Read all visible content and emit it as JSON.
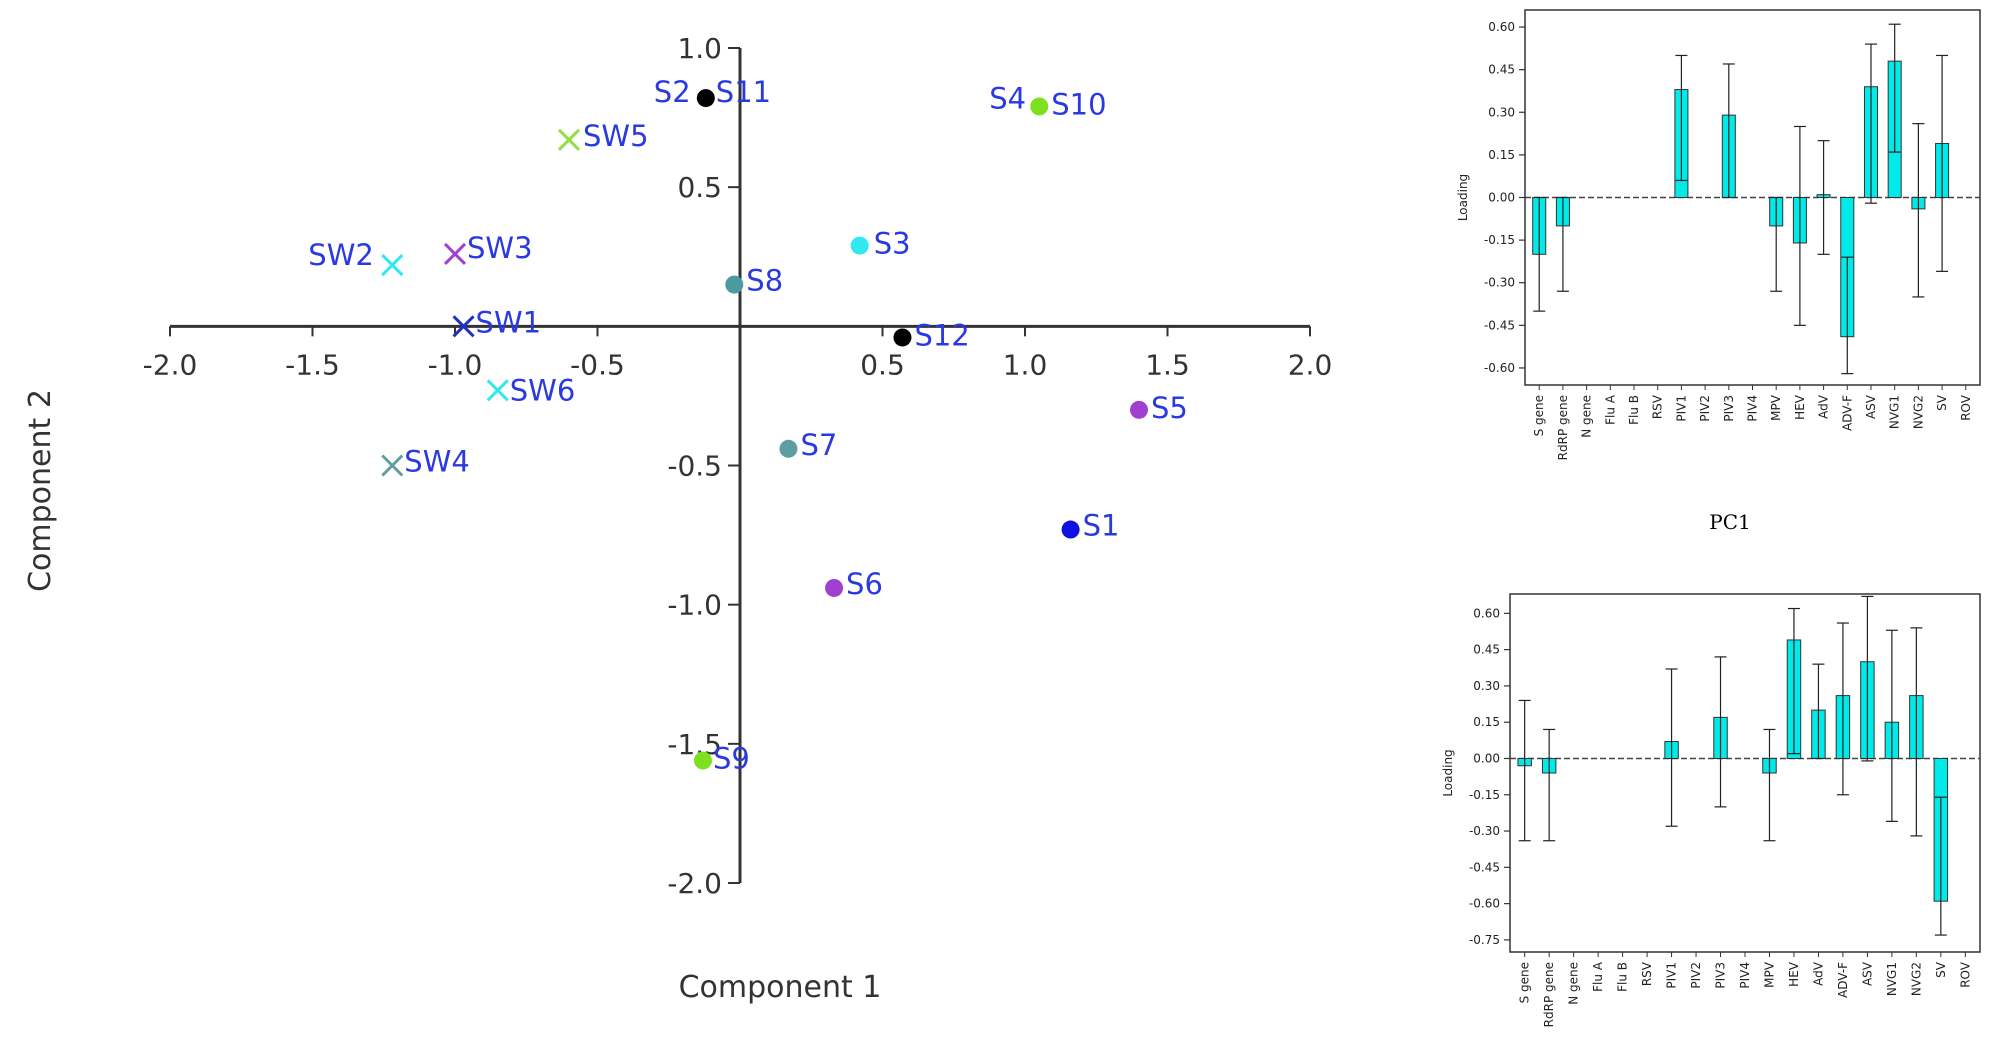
{
  "chart_data": [
    {
      "type": "scatter",
      "title": "",
      "xlabel": "Component 1",
      "ylabel": "Component 2",
      "xlim": [
        -2.0,
        2.0
      ],
      "ylim": [
        -2.0,
        1.0
      ],
      "x_ticks": [
        "-2.0",
        "-1.5",
        "-1.0",
        "-0.5",
        "0.5",
        "1.0",
        "1.5",
        "2.0"
      ],
      "y_ticks": [
        "1.0",
        "0.5",
        "-0.5",
        "-1.0",
        "-1.5",
        "-2.0"
      ],
      "grid": false,
      "points": [
        {
          "label": "S2",
          "x": -0.12,
          "y": 0.82,
          "marker": "dot",
          "color": "#000000"
        },
        {
          "label": "S11",
          "x": -0.12,
          "y": 0.82,
          "marker": "dot",
          "color": "#000000"
        },
        {
          "label": "S4",
          "x": 1.05,
          "y": 0.79,
          "marker": "dot",
          "color": "#7fe01f"
        },
        {
          "label": "S10",
          "x": 1.05,
          "y": 0.79,
          "marker": "dot",
          "color": "#7fe01f"
        },
        {
          "label": "SW5",
          "x": -0.6,
          "y": 0.67,
          "marker": "x",
          "color": "#90e040"
        },
        {
          "label": "S3",
          "x": 0.42,
          "y": 0.29,
          "marker": "dot",
          "color": "#30e8f0"
        },
        {
          "label": "SW2",
          "x": -1.22,
          "y": 0.22,
          "marker": "x",
          "color": "#30e8f0"
        },
        {
          "label": "SW3",
          "x": -1.0,
          "y": 0.26,
          "marker": "x",
          "color": "#a040d0"
        },
        {
          "label": "S8",
          "x": -0.02,
          "y": 0.15,
          "marker": "dot",
          "color": "#4a9aa0"
        },
        {
          "label": "SW1",
          "x": -0.97,
          "y": 0.0,
          "marker": "x",
          "color": "#2030c0"
        },
        {
          "label": "S12",
          "x": 0.57,
          "y": -0.04,
          "marker": "dot",
          "color": "#000000"
        },
        {
          "label": "SW6",
          "x": -0.85,
          "y": -0.23,
          "marker": "x",
          "color": "#30e8f0"
        },
        {
          "label": "S5",
          "x": 1.4,
          "y": -0.3,
          "marker": "dot",
          "color": "#a040d0"
        },
        {
          "label": "SW4",
          "x": -1.22,
          "y": -0.5,
          "marker": "x",
          "color": "#5f9ea0"
        },
        {
          "label": "S7",
          "x": 0.17,
          "y": -0.44,
          "marker": "dot",
          "color": "#5f9ea0"
        },
        {
          "label": "S1",
          "x": 1.16,
          "y": -0.73,
          "marker": "dot",
          "color": "#1010e0"
        },
        {
          "label": "S6",
          "x": 0.33,
          "y": -0.94,
          "marker": "dot",
          "color": "#a040d0"
        },
        {
          "label": "S9",
          "x": -0.13,
          "y": -1.56,
          "marker": "dot",
          "color": "#7fe01f"
        }
      ]
    },
    {
      "type": "bar",
      "title": "PC1",
      "xlabel": "",
      "ylabel": "Loading",
      "ylim": [
        -0.66,
        0.66
      ],
      "y_ticks": [
        "0.60",
        "0.45",
        "0.30",
        "0.15",
        "0.00",
        "-0.15",
        "-0.30",
        "-0.45",
        "-0.60"
      ],
      "categories": [
        "S gene",
        "RdRP gene",
        "N gene",
        "Flu A",
        "Flu B",
        "RSV",
        "PIV1",
        "PIV2",
        "PIV3",
        "PIV4",
        "MPV",
        "HEV",
        "AdV",
        "ADV-F",
        "ASV",
        "NVG1",
        "NVG2",
        "SV",
        "ROV"
      ],
      "values": [
        -0.2,
        -0.1,
        0.0,
        0.0,
        0.0,
        0.0,
        0.38,
        0.0,
        0.29,
        0.0,
        -0.1,
        -0.16,
        0.01,
        -0.49,
        0.39,
        0.48,
        -0.04,
        0.19,
        0.0
      ],
      "error_low": [
        -0.4,
        -0.33,
        0.0,
        0.0,
        0.0,
        0.0,
        0.06,
        0.0,
        0.0,
        0.0,
        -0.33,
        -0.45,
        -0.2,
        -0.62,
        -0.02,
        0.16,
        -0.35,
        -0.26,
        0.0
      ],
      "error_high": [
        0.0,
        0.0,
        0.0,
        0.0,
        0.0,
        0.0,
        0.5,
        0.0,
        0.47,
        0.0,
        0.0,
        0.25,
        0.2,
        -0.21,
        0.54,
        0.61,
        0.26,
        0.5,
        0.0
      ],
      "bar_color": "#00eaea"
    },
    {
      "type": "bar",
      "title": "",
      "xlabel": "",
      "ylabel": "Loading",
      "ylim": [
        -0.8,
        0.68
      ],
      "y_ticks": [
        "0.60",
        "0.45",
        "0.30",
        "0.15",
        "0.00",
        "-0.15",
        "-0.30",
        "-0.45",
        "-0.60",
        "-0.75"
      ],
      "categories": [
        "S gene",
        "RdRP gene",
        "N gene",
        "Flu A",
        "Flu B",
        "RSV",
        "PIV1",
        "PIV2",
        "PIV3",
        "PIV4",
        "MPV",
        "HEV",
        "AdV",
        "ADV-F",
        "ASV",
        "NVG1",
        "NVG2",
        "SV",
        "ROV"
      ],
      "values": [
        -0.03,
        -0.06,
        0.0,
        0.0,
        0.0,
        0.0,
        0.07,
        0.0,
        0.17,
        0.0,
        -0.06,
        0.49,
        0.2,
        0.26,
        0.4,
        0.15,
        0.26,
        -0.59,
        0.0
      ],
      "error_low": [
        -0.34,
        -0.34,
        0.0,
        0.0,
        0.0,
        0.0,
        -0.28,
        0.0,
        -0.2,
        0.0,
        -0.34,
        0.02,
        0.0,
        -0.15,
        -0.01,
        -0.26,
        -0.32,
        -0.73,
        0.0
      ],
      "error_high": [
        0.24,
        0.12,
        0.0,
        0.0,
        0.0,
        0.0,
        0.37,
        0.0,
        0.42,
        0.0,
        0.12,
        0.62,
        0.39,
        0.56,
        0.67,
        0.53,
        0.54,
        -0.16,
        0.0
      ],
      "bar_color": "#00eaea"
    }
  ]
}
